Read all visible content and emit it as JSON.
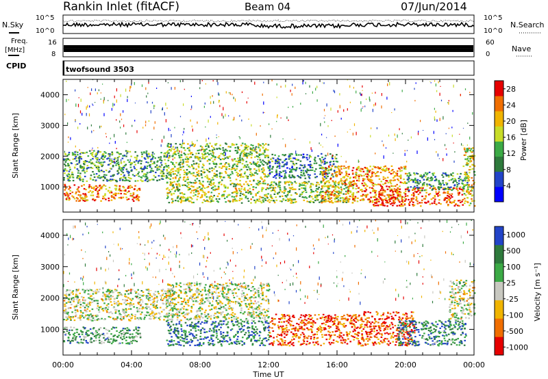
{
  "header": {
    "station": "Rankin Inlet (fitACF)",
    "beam": "Beam 04",
    "date": "07/Jun/2014"
  },
  "noise_panel": {
    "left_label": "N.Sky",
    "right_label": "N.Search",
    "left_ticks": [
      "10^5",
      "10^0"
    ],
    "right_ticks": [
      "10^5",
      "10^0"
    ]
  },
  "freq_panel": {
    "left_label_line1": "Freq.",
    "left_label_line2": "[MHz]",
    "right_label": "Nave",
    "left_ticks": [
      "16",
      "8"
    ],
    "right_ticks": [
      "60",
      "0"
    ]
  },
  "cpid_panel": {
    "label": "CPID",
    "program": "twofsound 3503"
  },
  "colors": {
    "power": [
      "#0000ff",
      "#2244c8",
      "#2e7a3c",
      "#3caa46",
      "#c8dc28",
      "#f0b400",
      "#f06e00",
      "#e60000"
    ],
    "velocity": [
      "#e60000",
      "#f06e00",
      "#f0b400",
      "#c8c8c0",
      "#3caa46",
      "#2e7a3c",
      "#2244c8"
    ]
  },
  "chart_data": [
    {
      "type": "heatmap",
      "name": "power",
      "ylabel": "Slant Range [km]",
      "xlabel": "",
      "x_ticks": [
        "00:00",
        "04:00",
        "08:00",
        "12:00",
        "16:00",
        "20:00",
        "00:00"
      ],
      "y_ticks": [
        "1000",
        "2000",
        "3000",
        "4000"
      ],
      "ylim": [
        180,
        4500
      ],
      "xlim_hours": [
        0,
        24
      ],
      "colorbar_label": "Power [dB]",
      "colorbar_ticks": [
        "4",
        "8",
        "12",
        "16",
        "20",
        "24",
        "28"
      ],
      "colorbar_range": [
        0,
        30
      ],
      "bands": [
        {
          "t0": 0.0,
          "t1": 4.5,
          "r0": 560,
          "r1": 1100,
          "level": 0.78
        },
        {
          "t0": 0.0,
          "t1": 6.0,
          "r0": 1200,
          "r1": 2200,
          "level": 0.4
        },
        {
          "t0": 6.0,
          "t1": 12.0,
          "r0": 500,
          "r1": 1400,
          "level": 0.55
        },
        {
          "t0": 6.0,
          "t1": 12.0,
          "r0": 1400,
          "r1": 2450,
          "level": 0.5
        },
        {
          "t0": 12.0,
          "t1": 17.0,
          "r0": 500,
          "r1": 1200,
          "level": 0.48
        },
        {
          "t0": 12.0,
          "t1": 16.0,
          "r0": 1300,
          "r1": 2100,
          "level": 0.3
        },
        {
          "t0": 15.0,
          "t1": 20.0,
          "r0": 500,
          "r1": 1700,
          "level": 0.72
        },
        {
          "t0": 18.0,
          "t1": 23.3,
          "r0": 400,
          "r1": 1000,
          "level": 0.88
        },
        {
          "t0": 20.0,
          "t1": 23.6,
          "r0": 900,
          "r1": 1500,
          "level": 0.35
        },
        {
          "t0": 23.3,
          "t1": 24.0,
          "r0": 400,
          "r1": 2300,
          "level": 0.6
        }
      ]
    },
    {
      "type": "heatmap",
      "name": "velocity",
      "ylabel": "Slant Range [km]",
      "xlabel": "Time UT",
      "x_ticks": [
        "00:00",
        "04:00",
        "08:00",
        "12:00",
        "16:00",
        "20:00",
        "00:00"
      ],
      "y_ticks": [
        "1000",
        "2000",
        "3000",
        "4000"
      ],
      "ylim": [
        180,
        4500
      ],
      "xlim_hours": [
        0,
        24
      ],
      "colorbar_label": "Velocity [m s⁻¹]",
      "colorbar_ticks": [
        "-1000",
        "-500",
        "-100",
        "-25",
        "25",
        "100",
        "500",
        "1000"
      ],
      "bands": [
        {
          "t0": 0.0,
          "t1": 4.5,
          "r0": 560,
          "r1": 1100,
          "level": 0.7
        },
        {
          "t0": 0.0,
          "t1": 6.5,
          "r0": 1300,
          "r1": 2300,
          "level": 0.5
        },
        {
          "t0": 6.0,
          "t1": 12.0,
          "r0": 1300,
          "r1": 2500,
          "level": 0.5
        },
        {
          "t0": 6.0,
          "t1": 12.0,
          "r0": 500,
          "r1": 1300,
          "level": 0.8
        },
        {
          "t0": 12.0,
          "t1": 17.5,
          "r0": 500,
          "r1": 1500,
          "level": 0.2
        },
        {
          "t0": 17.5,
          "t1": 20.5,
          "r0": 500,
          "r1": 1600,
          "level": 0.15
        },
        {
          "t0": 19.5,
          "t1": 23.5,
          "r0": 500,
          "r1": 1300,
          "level": 0.78
        },
        {
          "t0": 22.5,
          "t1": 24.0,
          "r0": 1300,
          "r1": 2600,
          "level": 0.5
        }
      ]
    }
  ]
}
